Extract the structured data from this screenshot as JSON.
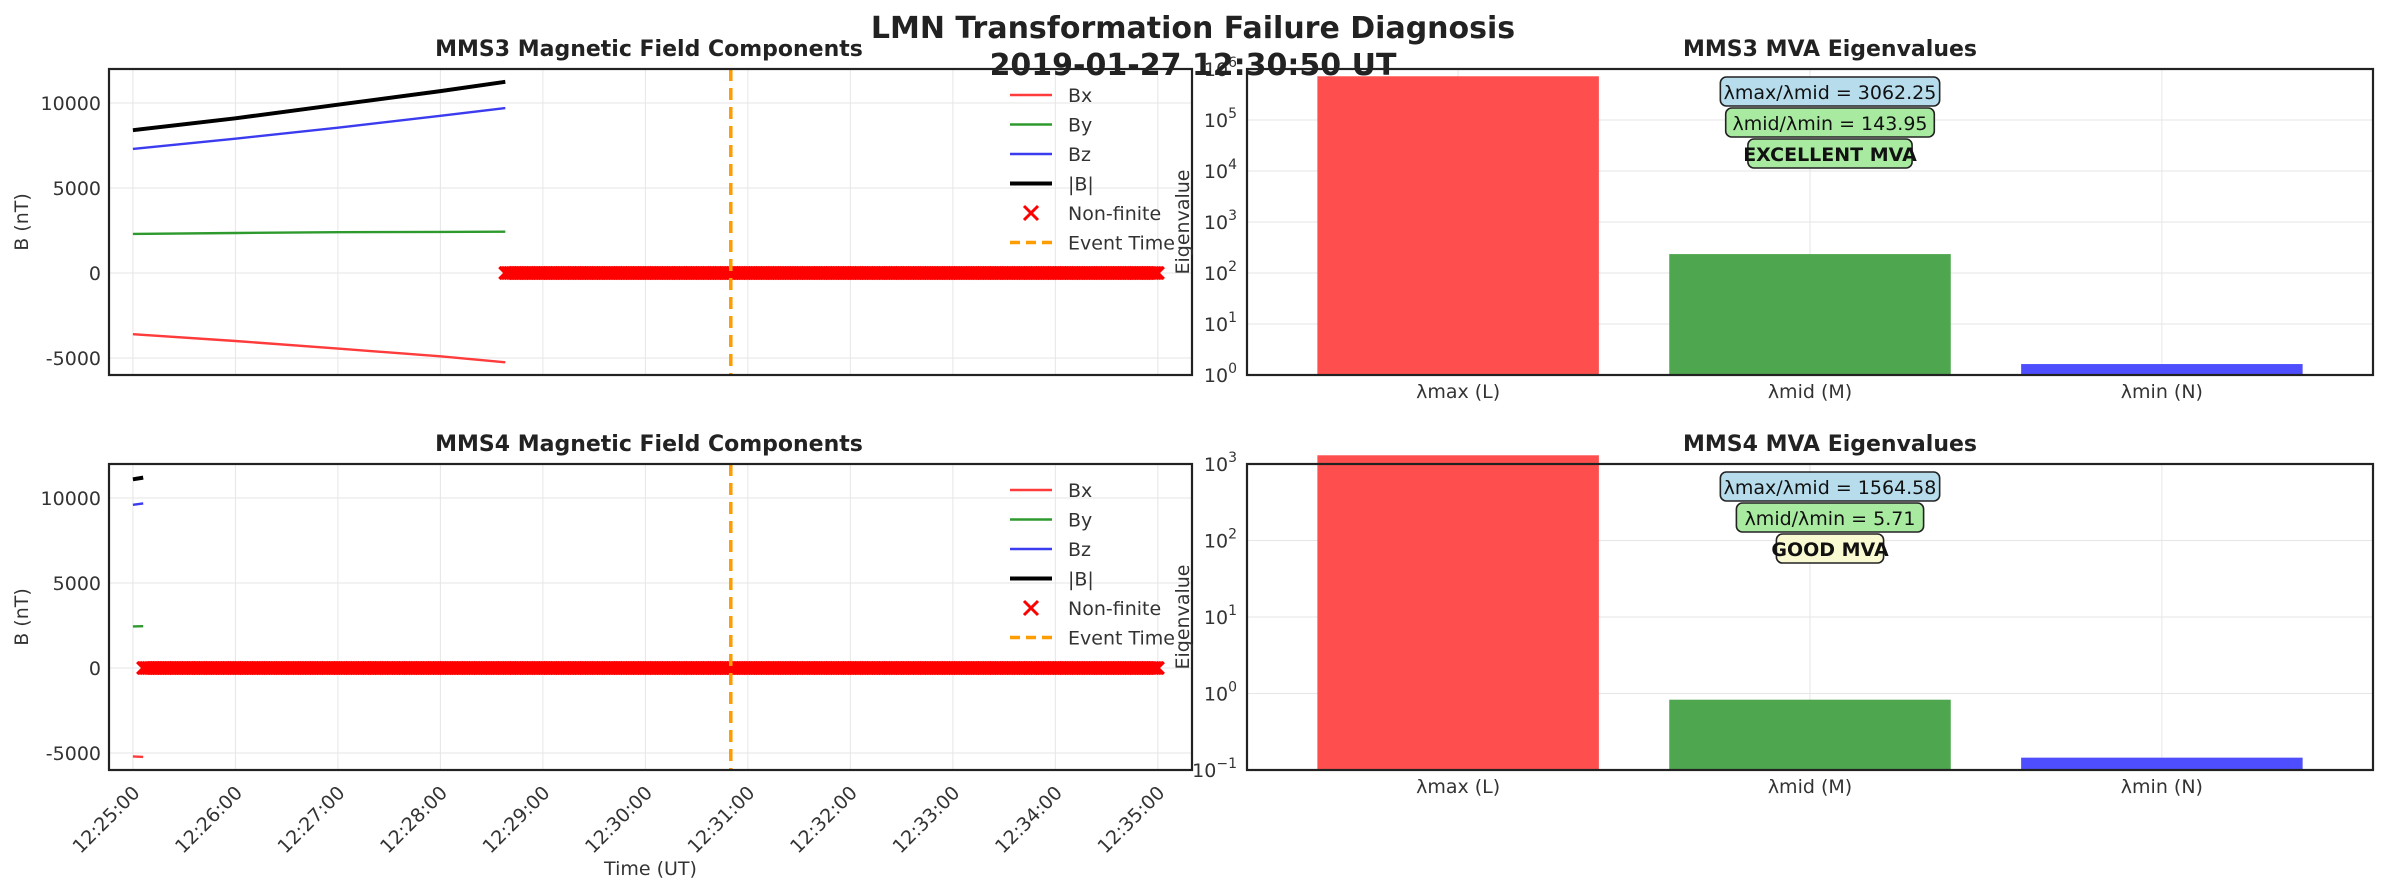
{
  "figure": {
    "title_line1": "LMN Transformation Failure Diagnosis",
    "title_line2": "2019-01-27 12:30:50 UT"
  },
  "chart_data": [
    {
      "type": "line",
      "title": "MMS3 Magnetic Field Components",
      "xlabel": "",
      "ylabel": "B (nT)",
      "x_range": [
        "12:24:46",
        "12:35:20"
      ],
      "ylim": [
        -6000,
        12000
      ],
      "yticks": [
        -5000,
        0,
        5000,
        10000
      ],
      "grid": true,
      "legend_position": "upper-right",
      "legend": [
        "Bx",
        "By",
        "Bz",
        "|B|",
        "Non-finite",
        "Event Time"
      ],
      "series": [
        {
          "name": "Bx",
          "color": "#ff3b3b",
          "points": [
            [
              "12:25:00",
              -3600
            ],
            [
              "12:26:00",
              -4000
            ],
            [
              "12:27:00",
              -4450
            ],
            [
              "12:28:00",
              -4900
            ],
            [
              "12:28:38",
              -5250
            ]
          ]
        },
        {
          "name": "By",
          "color": "#2e9a2e",
          "points": [
            [
              "12:25:00",
              2300
            ],
            [
              "12:26:00",
              2350
            ],
            [
              "12:27:00",
              2400
            ],
            [
              "12:28:00",
              2420
            ],
            [
              "12:28:38",
              2430
            ]
          ]
        },
        {
          "name": "Bz",
          "color": "#3b3bf0",
          "points": [
            [
              "12:25:00",
              7300
            ],
            [
              "12:26:00",
              7900
            ],
            [
              "12:27:00",
              8550
            ],
            [
              "12:28:00",
              9250
            ],
            [
              "12:28:38",
              9700
            ]
          ]
        },
        {
          "name": "|B|",
          "color": "#000000",
          "points": [
            [
              "12:25:00",
              8400
            ],
            [
              "12:26:00",
              9100
            ],
            [
              "12:27:00",
              9900
            ],
            [
              "12:28:00",
              10700
            ],
            [
              "12:28:38",
              11250
            ]
          ]
        }
      ],
      "nonfinite": {
        "name": "Non-finite",
        "color": "#ff0000",
        "value": 0,
        "start": "12:28:38",
        "end": "12:35:00"
      },
      "event": {
        "name": "Event Time",
        "time": "12:30:50",
        "color": "#ff9d00"
      }
    },
    {
      "type": "line",
      "title": "MMS4 Magnetic Field Components",
      "xlabel": "Time (UT)",
      "ylabel": "B (nT)",
      "x_range": [
        "12:24:46",
        "12:35:20"
      ],
      "xticks": [
        "12:25:00",
        "12:26:00",
        "12:27:00",
        "12:28:00",
        "12:29:00",
        "12:30:00",
        "12:31:00",
        "12:32:00",
        "12:33:00",
        "12:34:00",
        "12:35:00"
      ],
      "ylim": [
        -6000,
        12000
      ],
      "yticks": [
        -5000,
        0,
        5000,
        10000
      ],
      "grid": true,
      "legend_position": "upper-right",
      "legend": [
        "Bx",
        "By",
        "Bz",
        "|B|",
        "Non-finite",
        "Event Time"
      ],
      "series": [
        {
          "name": "Bx",
          "color": "#ff3b3b",
          "points": [
            [
              "12:25:00",
              -5200
            ],
            [
              "12:25:06",
              -5230
            ]
          ]
        },
        {
          "name": "By",
          "color": "#2e9a2e",
          "points": [
            [
              "12:25:00",
              2450
            ],
            [
              "12:25:06",
              2460
            ]
          ]
        },
        {
          "name": "Bz",
          "color": "#3b3bf0",
          "points": [
            [
              "12:25:00",
              9600
            ],
            [
              "12:25:06",
              9680
            ]
          ]
        },
        {
          "name": "|B|",
          "color": "#000000",
          "points": [
            [
              "12:25:00",
              11100
            ],
            [
              "12:25:06",
              11200
            ]
          ]
        }
      ],
      "nonfinite": {
        "name": "Non-finite",
        "color": "#ff0000",
        "value": 0,
        "start": "12:25:06",
        "end": "12:35:00"
      },
      "event": {
        "name": "Event Time",
        "time": "12:30:50",
        "color": "#ff9d00"
      }
    },
    {
      "type": "bar",
      "title": "MMS3 MVA Eigenvalues",
      "ylabel": "Eigenvalue",
      "yscale": "log",
      "ylim_exp": [
        0,
        6
      ],
      "categories": [
        "λmax (L)",
        "λmid (M)",
        "λmin (N)"
      ],
      "values": [
        720000,
        235,
        1.64
      ],
      "colors": [
        "#ff4a4a",
        "#4aa44a",
        "#4a4aff"
      ],
      "annotations": [
        {
          "text": "λmax/λmid = 3062.25",
          "bg": "#b7dcec",
          "bold": false
        },
        {
          "text": "λmid/λmin = 143.95",
          "bg": "#a8eaa0",
          "bold": false
        },
        {
          "text": "EXCELLENT MVA",
          "bg": "#a8eaa0",
          "bold": true
        }
      ]
    },
    {
      "type": "bar",
      "title": "MMS4 MVA Eigenvalues",
      "ylabel": "Eigenvalue",
      "yscale": "log",
      "ylim_exp": [
        -1,
        3
      ],
      "categories": [
        "λmax (L)",
        "λmid (M)",
        "λmin (N)"
      ],
      "values": [
        1300,
        0.83,
        0.145
      ],
      "colors": [
        "#ff4a4a",
        "#4aa44a",
        "#4a4aff"
      ],
      "annotations": [
        {
          "text": "λmax/λmid = 1564.58",
          "bg": "#b7dcec",
          "bold": false
        },
        {
          "text": "λmid/λmin = 5.71",
          "bg": "#a8eaa0",
          "bold": false
        },
        {
          "text": "GOOD MVA",
          "bg": "#fafad2",
          "bold": true
        }
      ]
    }
  ]
}
